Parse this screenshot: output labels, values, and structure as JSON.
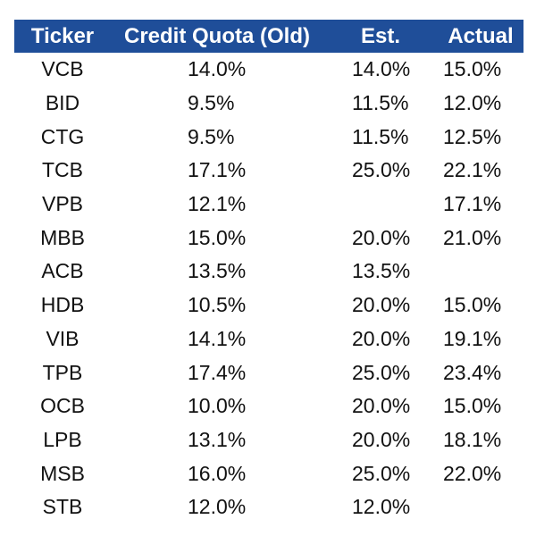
{
  "table": {
    "headers": {
      "ticker": "Ticker",
      "credit_quota_old": "Credit Quota (Old)",
      "est": "Est.",
      "actual": "Actual"
    },
    "rows": [
      {
        "ticker": "VCB",
        "credit_quota_old": "14.0%",
        "est": "14.0%",
        "actual": "15.0%"
      },
      {
        "ticker": "BID",
        "credit_quota_old": "9.5%",
        "est": "11.5%",
        "actual": "12.0%"
      },
      {
        "ticker": "CTG",
        "credit_quota_old": "9.5%",
        "est": "11.5%",
        "actual": "12.5%"
      },
      {
        "ticker": "TCB",
        "credit_quota_old": "17.1%",
        "est": "25.0%",
        "actual": "22.1%"
      },
      {
        "ticker": "VPB",
        "credit_quota_old": "12.1%",
        "est": "",
        "actual": "17.1%"
      },
      {
        "ticker": "MBB",
        "credit_quota_old": "15.0%",
        "est": "20.0%",
        "actual": "21.0%"
      },
      {
        "ticker": "ACB",
        "credit_quota_old": "13.5%",
        "est": "13.5%",
        "actual": ""
      },
      {
        "ticker": "HDB",
        "credit_quota_old": "10.5%",
        "est": "20.0%",
        "actual": "15.0%"
      },
      {
        "ticker": "VIB",
        "credit_quota_old": "14.1%",
        "est": "20.0%",
        "actual": "19.1%"
      },
      {
        "ticker": "TPB",
        "credit_quota_old": "17.4%",
        "est": "25.0%",
        "actual": "23.4%"
      },
      {
        "ticker": "OCB",
        "credit_quota_old": "10.0%",
        "est": "20.0%",
        "actual": "15.0%"
      },
      {
        "ticker": "LPB",
        "credit_quota_old": "13.1%",
        "est": "20.0%",
        "actual": "18.1%"
      },
      {
        "ticker": "MSB",
        "credit_quota_old": "16.0%",
        "est": "25.0%",
        "actual": "22.0%"
      },
      {
        "ticker": "STB",
        "credit_quota_old": "12.0%",
        "est": "12.0%",
        "actual": ""
      }
    ]
  },
  "colors": {
    "header_background": "#1f4e99",
    "header_text": "#ffffff",
    "body_text": "#111111"
  }
}
